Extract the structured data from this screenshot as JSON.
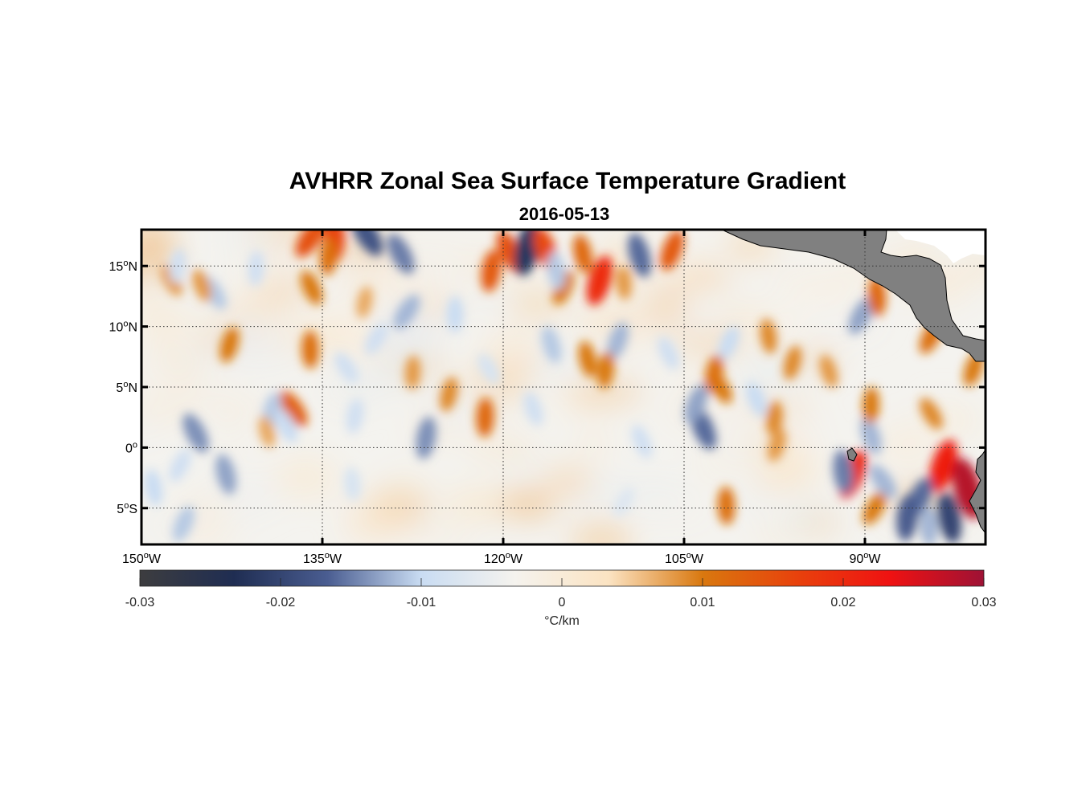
{
  "title": "AVHRR Zonal Sea Surface Temperature Gradient",
  "subtitle": "2016-05-13",
  "map": {
    "lon_range": [
      -150,
      -80
    ],
    "lat_range": [
      -8,
      18
    ],
    "lon_ticks": [
      {
        "value": -150,
        "deg": "150",
        "hemi": "W"
      },
      {
        "value": -135,
        "deg": "135",
        "hemi": "W"
      },
      {
        "value": -120,
        "deg": "120",
        "hemi": "W"
      },
      {
        "value": -105,
        "deg": "105",
        "hemi": "W"
      },
      {
        "value": -90,
        "deg": "90",
        "hemi": "W"
      }
    ],
    "lat_ticks": [
      {
        "value": 15,
        "deg": "15",
        "hemi": "N"
      },
      {
        "value": 10,
        "deg": "10",
        "hemi": "N"
      },
      {
        "value": 5,
        "deg": "5",
        "hemi": "N"
      },
      {
        "value": 0,
        "deg": "0",
        "hemi": ""
      },
      {
        "value": -5,
        "deg": "5",
        "hemi": "S"
      }
    ],
    "land_color": "#808080",
    "grid": "dotted"
  },
  "colorbar": {
    "range": [
      -0.03,
      0.03
    ],
    "ticks": [
      "-0.03",
      "-0.02",
      "-0.01",
      "0",
      "0.01",
      "0.02",
      "0.03"
    ],
    "label": "°C/km",
    "colors": [
      "#3d3d3f",
      "#1f2d52",
      "#4a5d91",
      "#c9dcf2",
      "#f5f3ee",
      "#fbe3c2",
      "#d9780f",
      "#e8420c",
      "#ef1212",
      "#9e1235"
    ]
  },
  "features": [
    {
      "lon": -137.4,
      "lat": 3.2,
      "value": 0.013
    },
    {
      "lon": -121.5,
      "lat": 2.5,
      "value": 0.012
    },
    {
      "lon": -102.0,
      "lat": 5.0,
      "value": 0.01
    },
    {
      "lon": -97.5,
      "lat": 2.4,
      "value": 0.009
    },
    {
      "lon": -145.5,
      "lat": 1.2,
      "value": -0.014
    },
    {
      "lon": -126.4,
      "lat": 0.8,
      "value": -0.014
    },
    {
      "lon": -103.4,
      "lat": 1.6,
      "value": -0.016
    },
    {
      "lon": -139.2,
      "lat": 3.0,
      "value": -0.011
    },
    {
      "lon": -89.5,
      "lat": 1.0,
      "value": -0.012
    },
    {
      "lon": -83.5,
      "lat": -1.5,
      "value": 0.022
    },
    {
      "lon": -81.5,
      "lat": -3.4,
      "value": 0.028
    },
    {
      "lon": -91.0,
      "lat": -2.2,
      "value": 0.02
    },
    {
      "lon": -83.0,
      "lat": -5.8,
      "value": -0.02
    },
    {
      "lon": -85.5,
      "lat": -4.2,
      "value": -0.016
    },
    {
      "lon": -91.8,
      "lat": -2.0,
      "value": -0.015
    },
    {
      "lon": -89.2,
      "lat": -5.0,
      "value": 0.01
    },
    {
      "lon": -84.7,
      "lat": -6.5,
      "value": -0.012
    },
    {
      "lon": -136.0,
      "lat": 17.3,
      "value": 0.015
    },
    {
      "lon": -134.0,
      "lat": 17.2,
      "value": 0.017
    },
    {
      "lon": -131.3,
      "lat": 17.6,
      "value": -0.018
    },
    {
      "lon": -134.5,
      "lat": 15.8,
      "value": 0.011
    },
    {
      "lon": -128.5,
      "lat": 16.0,
      "value": -0.015
    },
    {
      "lon": -121.0,
      "lat": 14.6,
      "value": 0.014
    },
    {
      "lon": -119.5,
      "lat": 16.2,
      "value": 0.015
    },
    {
      "lon": -118.0,
      "lat": 16.4,
      "value": -0.022
    },
    {
      "lon": -116.5,
      "lat": 16.4,
      "value": 0.016
    },
    {
      "lon": -112.0,
      "lat": 13.8,
      "value": 0.02
    },
    {
      "lon": -108.7,
      "lat": 15.9,
      "value": -0.016
    },
    {
      "lon": -106.0,
      "lat": 16.3,
      "value": 0.014
    },
    {
      "lon": -113.4,
      "lat": 16.0,
      "value": 0.012
    },
    {
      "lon": -115.0,
      "lat": 13.2,
      "value": 0.01
    },
    {
      "lon": -115.6,
      "lat": 14.6,
      "value": -0.011
    },
    {
      "lon": -90.3,
      "lat": 10.9,
      "value": -0.013
    },
    {
      "lon": -89.0,
      "lat": 12.5,
      "value": 0.012
    },
    {
      "lon": -128.0,
      "lat": 11.2,
      "value": -0.012
    },
    {
      "lon": -124.0,
      "lat": 11.0,
      "value": -0.01
    },
    {
      "lon": -144.0,
      "lat": 12.8,
      "value": -0.011
    },
    {
      "lon": -140.5,
      "lat": 14.8,
      "value": -0.009
    },
    {
      "lon": -147.5,
      "lat": 13.8,
      "value": 0.008
    },
    {
      "lon": -147.0,
      "lat": 15.0,
      "value": -0.009
    },
    {
      "lon": -135.9,
      "lat": 13.2,
      "value": 0.01
    },
    {
      "lon": -131.5,
      "lat": 12.0,
      "value": 0.007
    },
    {
      "lon": -145.0,
      "lat": 13.4,
      "value": 0.008
    },
    {
      "lon": -142.7,
      "lat": 8.5,
      "value": 0.01
    },
    {
      "lon": -116.0,
      "lat": 8.5,
      "value": -0.011
    },
    {
      "lon": -110.5,
      "lat": 8.8,
      "value": -0.012
    },
    {
      "lon": -113.0,
      "lat": 7.3,
      "value": 0.01
    },
    {
      "lon": -101.3,
      "lat": 8.6,
      "value": -0.01
    },
    {
      "lon": -98.0,
      "lat": 9.2,
      "value": 0.009
    },
    {
      "lon": -84.5,
      "lat": 9.2,
      "value": 0.011
    },
    {
      "lon": -110.0,
      "lat": 13.6,
      "value": 0.008
    },
    {
      "lon": -130.5,
      "lat": 9.0,
      "value": -0.009
    },
    {
      "lon": -136.0,
      "lat": 8.1,
      "value": 0.011
    },
    {
      "lon": -133.0,
      "lat": 6.6,
      "value": -0.009
    },
    {
      "lon": -127.5,
      "lat": 6.2,
      "value": 0.008
    },
    {
      "lon": -121.2,
      "lat": 6.5,
      "value": -0.008
    },
    {
      "lon": -111.5,
      "lat": 6.4,
      "value": 0.01
    },
    {
      "lon": -106.3,
      "lat": 7.8,
      "value": -0.009
    },
    {
      "lon": -102.5,
      "lat": 6.1,
      "value": 0.011
    },
    {
      "lon": -99.0,
      "lat": 4.0,
      "value": -0.01
    },
    {
      "lon": -96.0,
      "lat": 7.0,
      "value": 0.009
    },
    {
      "lon": -93.0,
      "lat": 6.3,
      "value": 0.008
    },
    {
      "lon": -81.0,
      "lat": 6.5,
      "value": 0.01
    },
    {
      "lon": -143.0,
      "lat": -2.2,
      "value": -0.013
    },
    {
      "lon": -146.5,
      "lat": -6.3,
      "value": -0.011
    },
    {
      "lon": -149.0,
      "lat": -3.3,
      "value": -0.01
    },
    {
      "lon": -146.8,
      "lat": -1.5,
      "value": -0.009
    },
    {
      "lon": -132.5,
      "lat": -3.0,
      "value": -0.008
    },
    {
      "lon": -110.0,
      "lat": -4.5,
      "value": -0.007
    },
    {
      "lon": -101.5,
      "lat": -4.8,
      "value": 0.011
    },
    {
      "lon": -88.5,
      "lat": -2.8,
      "value": -0.012
    },
    {
      "lon": -89.5,
      "lat": 3.5,
      "value": 0.01
    },
    {
      "lon": -84.5,
      "lat": 2.8,
      "value": 0.009
    },
    {
      "lon": -86.5,
      "lat": -5.8,
      "value": -0.017
    },
    {
      "lon": -138.0,
      "lat": 1.8,
      "value": -0.01
    },
    {
      "lon": -132.3,
      "lat": 2.6,
      "value": -0.009
    },
    {
      "lon": -108.5,
      "lat": 0.5,
      "value": -0.009
    },
    {
      "lon": -124.5,
      "lat": 4.4,
      "value": 0.009
    },
    {
      "lon": -117.5,
      "lat": 3.2,
      "value": -0.009
    },
    {
      "lon": -97.3,
      "lat": 0.2,
      "value": 0.008
    },
    {
      "lon": -139.6,
      "lat": 1.3,
      "value": 0.007
    },
    {
      "lon": -104.0,
      "lat": 3.6,
      "value": -0.013
    }
  ]
}
